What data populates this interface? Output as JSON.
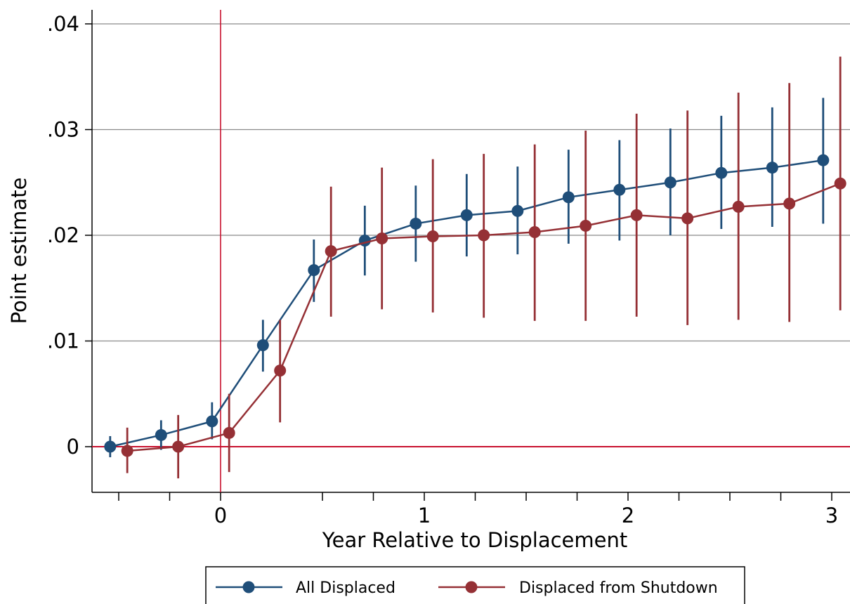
{
  "chart_data": {
    "type": "line",
    "title": "",
    "xlabel": "Year Relative to Displacement",
    "ylabel": "Point estimate",
    "xlim": [
      -0.6,
      3.1
    ],
    "ylim": [
      -0.0045,
      0.0415
    ],
    "xticks": [
      {
        "value": 0,
        "label": "0"
      },
      {
        "value": 1,
        "label": "1"
      },
      {
        "value": 2,
        "label": "2"
      },
      {
        "value": 3,
        "label": "3"
      }
    ],
    "xticks_minor": [
      -0.5,
      -0.25,
      0.5,
      0.75,
      1.25,
      1.5,
      1.75,
      2.25,
      2.5,
      2.75
    ],
    "yticks": [
      {
        "value": 0,
        "label": "0"
      },
      {
        "value": 0.01,
        "label": ".01"
      },
      {
        "value": 0.02,
        "label": ".02"
      },
      {
        "value": 0.03,
        "label": ".03"
      },
      {
        "value": 0.04,
        "label": ".04"
      }
    ],
    "grid": "horizontal",
    "reference_lines": {
      "x": 0,
      "y": 0,
      "color": "#c8102e"
    },
    "legend_position": "bottom",
    "series": [
      {
        "name": "All Displaced",
        "color": "#1f4e79",
        "x": [
          -0.542,
          -0.292,
          -0.042,
          0.208,
          0.458,
          0.708,
          0.958,
          1.208,
          1.458,
          1.708,
          1.958,
          2.208,
          2.458,
          2.708,
          2.958
        ],
        "y": [
          0.0,
          0.0011,
          0.0024,
          0.0096,
          0.0167,
          0.0195,
          0.0211,
          0.0219,
          0.0223,
          0.0236,
          0.0243,
          0.025,
          0.0259,
          0.0264,
          0.0271
        ],
        "ci_low": [
          -0.001,
          -0.0003,
          0.0007,
          0.0071,
          0.0137,
          0.0162,
          0.0175,
          0.018,
          0.0182,
          0.0192,
          0.0195,
          0.02,
          0.0206,
          0.0208,
          0.0211
        ],
        "ci_high": [
          0.001,
          0.0025,
          0.0042,
          0.012,
          0.0196,
          0.0228,
          0.0247,
          0.0258,
          0.0265,
          0.0281,
          0.029,
          0.0301,
          0.0313,
          0.0321,
          0.033
        ]
      },
      {
        "name": "Displaced from Shutdown",
        "color": "#953035",
        "x": [
          -0.458,
          -0.208,
          0.042,
          0.292,
          0.542,
          0.792,
          1.042,
          1.292,
          1.542,
          1.792,
          2.042,
          2.292,
          2.542,
          2.792,
          3.042
        ],
        "y": [
          -0.0004,
          0.0,
          0.0013,
          0.0072,
          0.0185,
          0.0197,
          0.0199,
          0.02,
          0.0203,
          0.0209,
          0.0219,
          0.0216,
          0.0227,
          0.023,
          0.0249
        ],
        "ci_low": [
          -0.0025,
          -0.003,
          -0.0024,
          0.0023,
          0.0123,
          0.013,
          0.0127,
          0.0122,
          0.0119,
          0.0119,
          0.0123,
          0.0115,
          0.012,
          0.0118,
          0.0129
        ],
        "ci_high": [
          0.0018,
          0.003,
          0.005,
          0.012,
          0.0246,
          0.0264,
          0.0272,
          0.0277,
          0.0286,
          0.0299,
          0.0315,
          0.0318,
          0.0335,
          0.0344,
          0.0369
        ]
      }
    ]
  }
}
